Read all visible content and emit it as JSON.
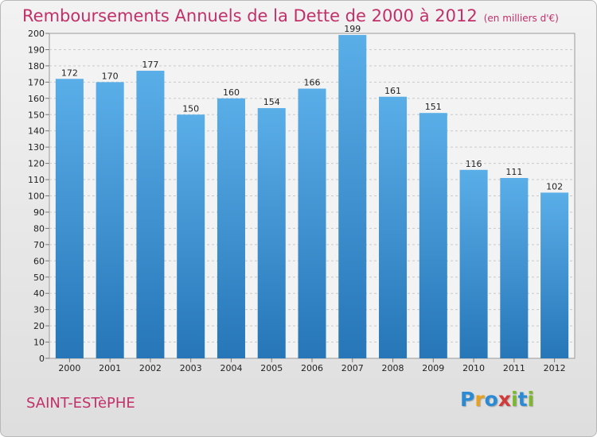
{
  "title": "Remboursements Annuels de la Dette de 2000 à 2012",
  "unit": "(en milliers d'€)",
  "commune": "SAINT-ESTèPHE",
  "logo": {
    "letters": [
      {
        "char": "P",
        "color": "#2a8ad4"
      },
      {
        "char": "r",
        "color": "#e8a020"
      },
      {
        "char": "o",
        "color": "#2a8ad4"
      },
      {
        "char": "x",
        "color": "#d23a3a"
      },
      {
        "char": "i",
        "color": "#7cb82f"
      },
      {
        "char": "t",
        "color": "#2a8ad4"
      },
      {
        "char": "i",
        "color": "#7cb82f"
      }
    ]
  },
  "colors": {
    "title": "#c2306a",
    "bar_top": "#5aaee8",
    "bar_bottom": "#2676b8",
    "text": "#222222"
  },
  "chart_data": {
    "type": "bar",
    "categories": [
      "2000",
      "2001",
      "2002",
      "2003",
      "2004",
      "2005",
      "2006",
      "2007",
      "2008",
      "2009",
      "2010",
      "2011",
      "2012"
    ],
    "values": [
      172,
      170,
      177,
      150,
      160,
      154,
      166,
      199,
      161,
      151,
      116,
      111,
      102
    ],
    "ylim": [
      0,
      200
    ],
    "yticks": [
      0,
      10,
      20,
      30,
      40,
      50,
      60,
      70,
      80,
      90,
      100,
      110,
      120,
      130,
      140,
      150,
      160,
      170,
      180,
      190,
      200
    ],
    "grid": true,
    "data_labels": true
  }
}
